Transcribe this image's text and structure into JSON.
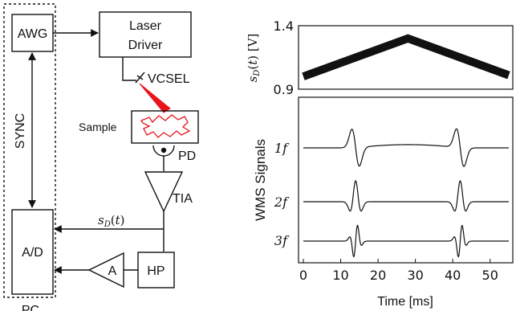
{
  "diagram": {
    "blocks": {
      "awg": "AWG",
      "laser_driver_line1": "Laser",
      "laser_driver_line2": "Driver",
      "vcsel": "VCSEL",
      "sample": "Sample",
      "pd": "PD",
      "tia": "TIA",
      "ad": "A/D",
      "amp": "A",
      "hp": "HP",
      "sync": "SYNC",
      "pc": "PC"
    },
    "signal_label": "s_D(t)"
  },
  "chart_data": [
    {
      "type": "line",
      "ylabel": "s_D(t) [V]",
      "ylim": [
        0.9,
        1.4
      ],
      "yticks": [
        "0.9",
        "1.4"
      ],
      "x": [
        0,
        28,
        55
      ],
      "series": [
        {
          "values": [
            1.0,
            1.3,
            1.01
          ]
        }
      ]
    },
    {
      "type": "line",
      "ylabel": "WMS Signals",
      "xlabel": "Time [ms]",
      "xlim": [
        0,
        55
      ],
      "xticks": [
        "0",
        "10",
        "20",
        "30",
        "40",
        "50"
      ],
      "series_labels": [
        "1f",
        "2f",
        "3f"
      ],
      "harmonic_peaks_ms": [
        14,
        42
      ],
      "series": [
        {
          "name": "1f"
        },
        {
          "name": "2f"
        },
        {
          "name": "3f"
        }
      ]
    }
  ]
}
